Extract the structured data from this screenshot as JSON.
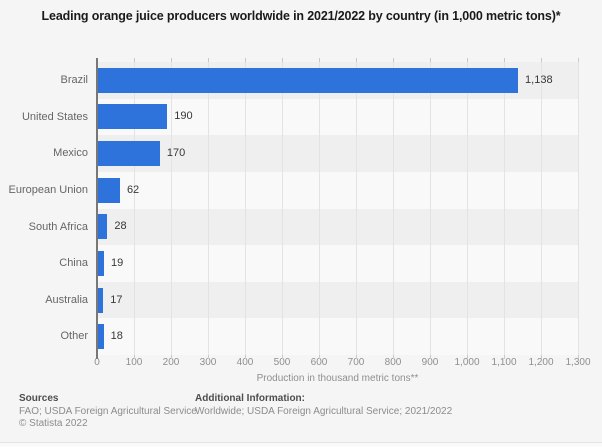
{
  "title": "Leading orange juice producers worldwide in 2021/2022 by country (in 1,000 metric tons)*",
  "chart_data": {
    "type": "bar",
    "orientation": "horizontal",
    "categories": [
      "Brazil",
      "United States",
      "Mexico",
      "European Union",
      "South Africa",
      "China",
      "Australia",
      "Other"
    ],
    "values": [
      1138,
      190,
      170,
      62,
      28,
      19,
      17,
      18
    ],
    "value_labels": [
      "1,138",
      "190",
      "170",
      "62",
      "28",
      "19",
      "17",
      "18"
    ],
    "xlabel": "Production in thousand metric tons**",
    "xlim": [
      0,
      1300
    ],
    "x_tick_step": 100,
    "x_tick_labels": [
      "0",
      "100",
      "200",
      "300",
      "400",
      "500",
      "600",
      "700",
      "800",
      "900",
      "1,000",
      "1,100",
      "1,200",
      "1,300"
    ],
    "grid": "vertical",
    "legend": "none"
  },
  "footer": {
    "sources_title": "Sources",
    "sources_line1": "FAO; USDA Foreign Agricultural Service",
    "copyright": "© Statista 2022",
    "additional_title": "Additional Information:",
    "additional_line1": "Worldwide; USDA Foreign Agricultural Service; 2021/2022"
  },
  "colors": {
    "bar": "#2e73dc",
    "axis_line": "#777777",
    "gridline": "#e3e3e3",
    "stripe_dark": "#efefef",
    "stripe_light": "#f9f9f9",
    "background": "#f5f5f5"
  }
}
